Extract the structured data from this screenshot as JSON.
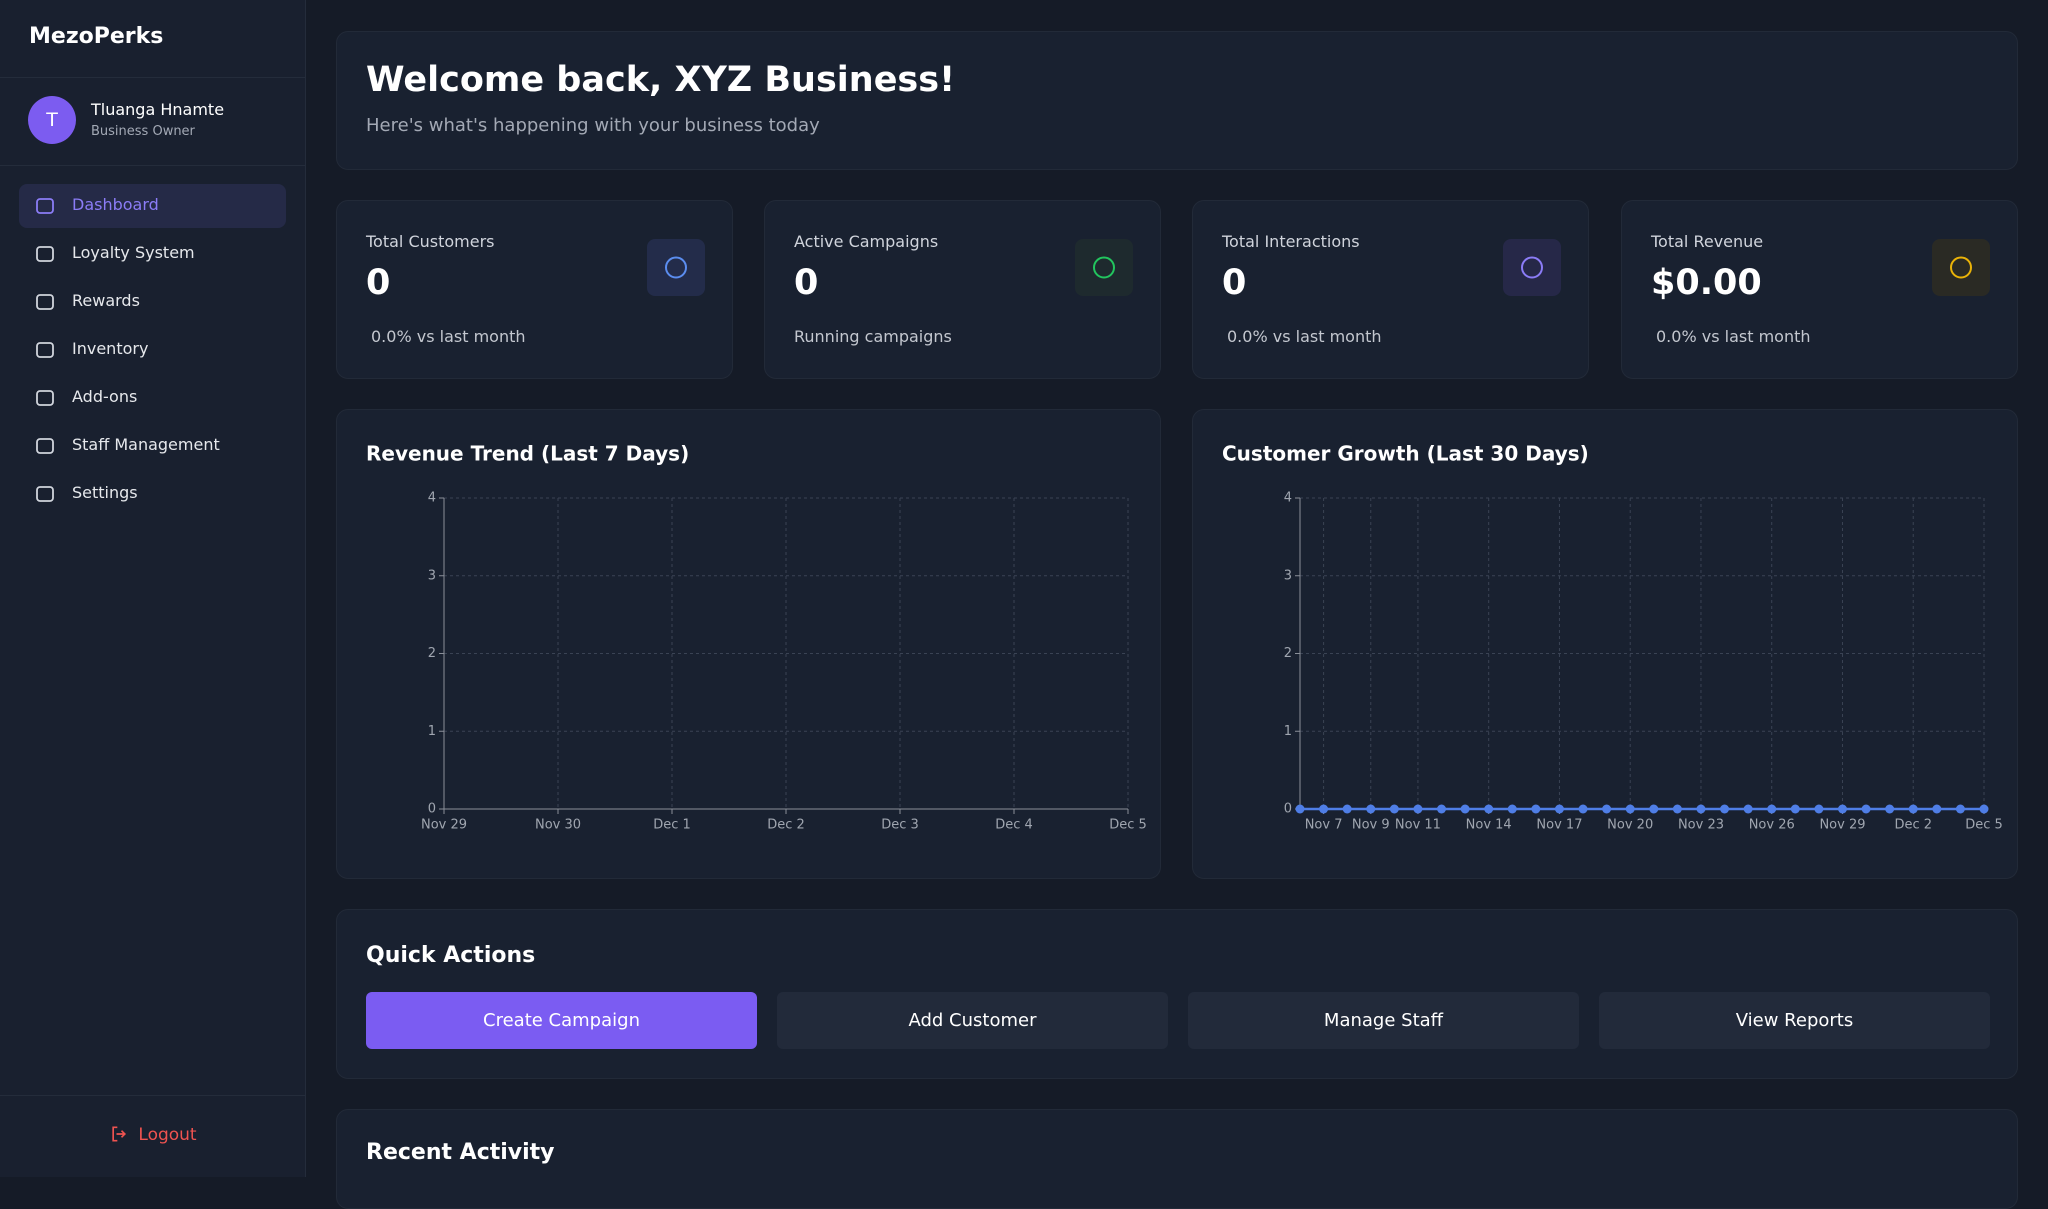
{
  "sidebar": {
    "brand": "MezoPerks",
    "user": {
      "initial": "T",
      "name": "Tluanga Hnamte",
      "role": "Business Owner"
    },
    "nav": [
      "Dashboard",
      "Loyalty System",
      "Rewards",
      "Inventory",
      "Add-ons",
      "Staff Management",
      "Settings"
    ],
    "logout": "Logout"
  },
  "header": {
    "title": "Welcome back, XYZ Business!",
    "subtitle": "Here's what's happening with your business today"
  },
  "stats": [
    {
      "label": "Total Customers",
      "value": "0",
      "note": "0.0% vs last month"
    },
    {
      "label": "Active Campaigns",
      "value": "0",
      "note": "Running campaigns"
    },
    {
      "label": "Total Interactions",
      "value": "0",
      "note": "0.0% vs last month"
    },
    {
      "label": "Total Revenue",
      "value": "$0.00",
      "note": "0.0% vs last month"
    }
  ],
  "chart_data": [
    {
      "type": "line",
      "title": "Revenue Trend (Last 7 Days)",
      "categories": [
        "Nov 29",
        "Nov 30",
        "Dec 1",
        "Dec 2",
        "Dec 3",
        "Dec 4",
        "Dec 5"
      ],
      "ylim": [
        0,
        4
      ],
      "yticks": [
        0,
        1,
        2,
        3,
        4
      ],
      "grid": true
    },
    {
      "type": "line",
      "title": "Customer Growth (Last 30 Days)",
      "categories": [
        null,
        "Nov 7",
        null,
        "Nov 9",
        null,
        "Nov 11",
        null,
        null,
        "Nov 14",
        null,
        null,
        "Nov 17",
        null,
        null,
        "Nov 20",
        null,
        null,
        "Nov 23",
        null,
        null,
        "Nov 26",
        null,
        null,
        "Nov 29",
        null,
        null,
        "Dec 2",
        null,
        null,
        "Dec 5"
      ],
      "series": [
        {
          "color": "#4f7ee6",
          "values": [
            0,
            0,
            0,
            0,
            0,
            0,
            0,
            0,
            0,
            0,
            0,
            0,
            0,
            0,
            0,
            0,
            0,
            0,
            0,
            0,
            0,
            0,
            0,
            0,
            0,
            0,
            0,
            0,
            0,
            0
          ]
        }
      ],
      "ylim": [
        0,
        4
      ],
      "yticks": [
        0,
        1,
        2,
        3,
        4
      ],
      "grid": true
    }
  ],
  "quick_actions": {
    "title": "Quick Actions",
    "buttons": [
      "Create Campaign",
      "Add Customer",
      "Manage Staff",
      "View Reports"
    ]
  },
  "recent_activity": {
    "title": "Recent Activity"
  }
}
